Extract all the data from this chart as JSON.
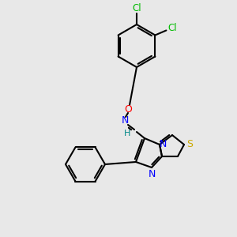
{
  "background_color": "#e8e8e8",
  "bond_color": "#000000",
  "atom_colors": {
    "Cl": "#00bb00",
    "O": "#ff0000",
    "N": "#0000ff",
    "S": "#ccaa00",
    "H": "#008888",
    "C": "#000000"
  },
  "bond_lw": 1.5,
  "font_size": 9
}
